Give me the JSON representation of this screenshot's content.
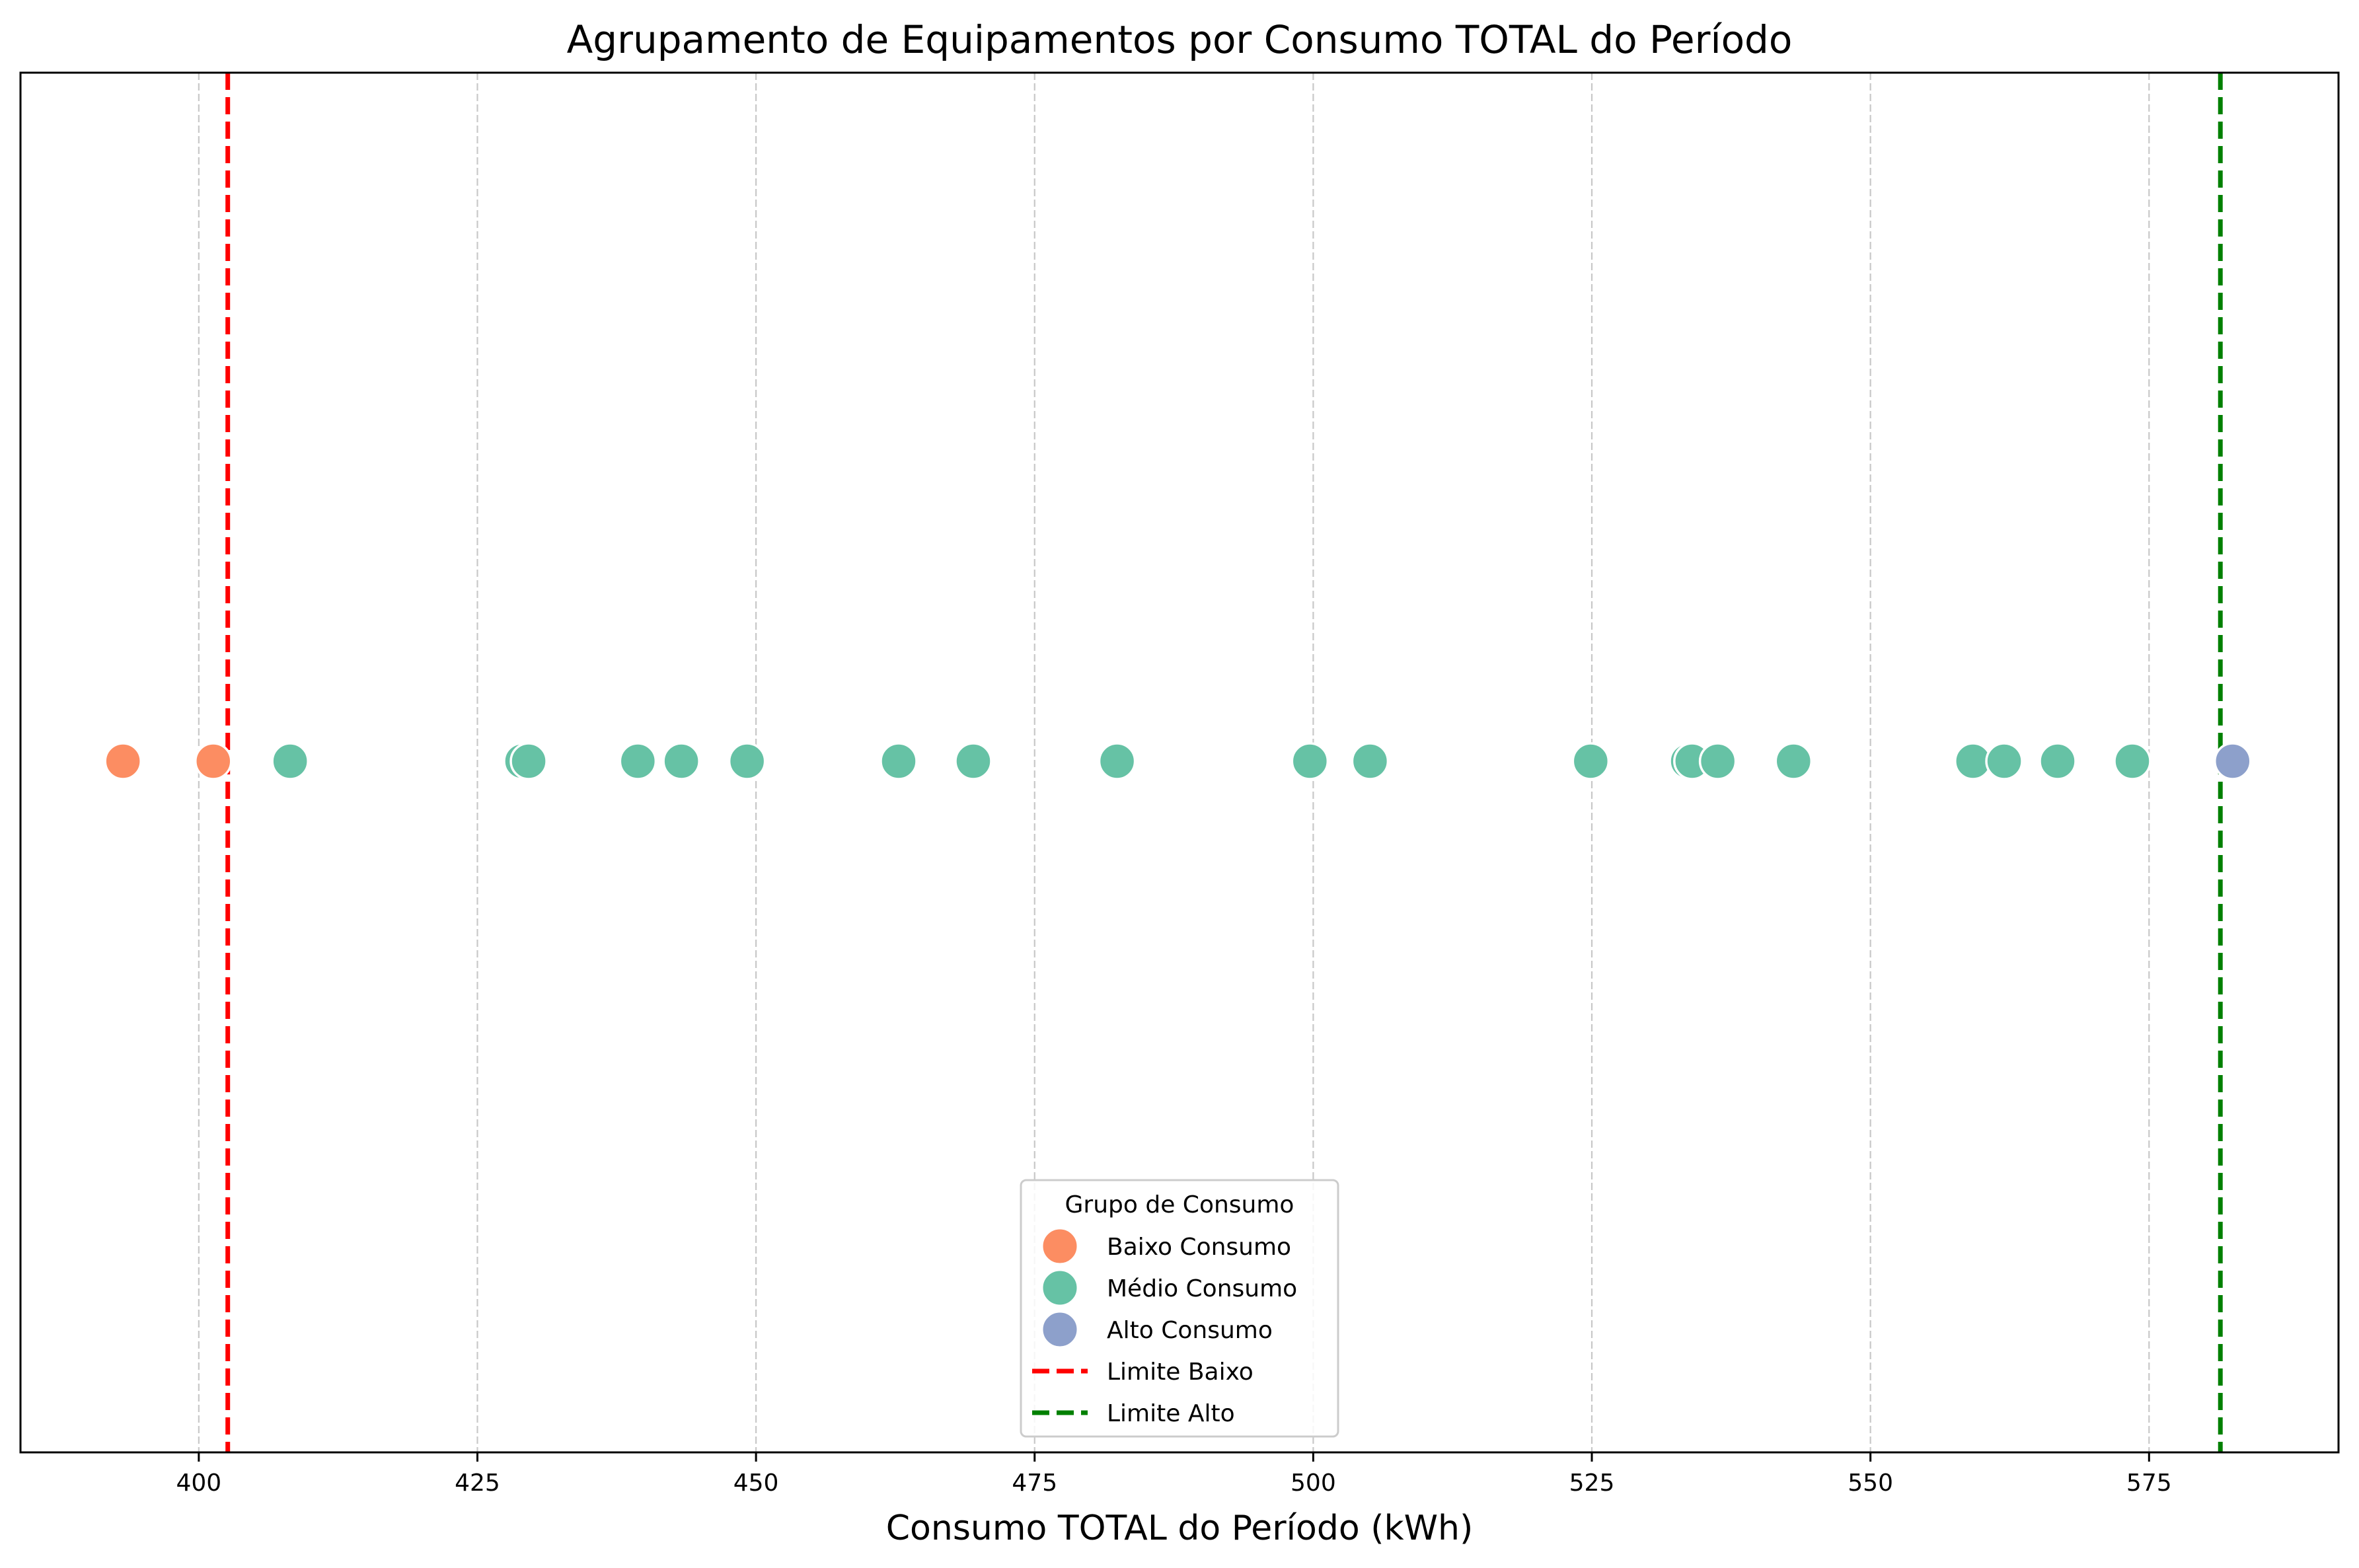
{
  "chart_data": {
    "type": "scatter",
    "title": "Agrupamento de Equipamentos por Consumo TOTAL do Período",
    "xlabel": "Consumo TOTAL do Período (kWh)",
    "ylabel": "",
    "xlim": [
      384,
      592
    ],
    "xticks": [
      "400",
      "425",
      "450",
      "475",
      "500",
      "525",
      "550",
      "575"
    ],
    "grid": "vertical dashed",
    "legend": {
      "title": "Grupo de Consumo",
      "placement": "bottom-center",
      "entries": [
        {
          "label": "Baixo Consumo",
          "kind": "marker",
          "color": "#fc8d62"
        },
        {
          "label": "Médio Consumo",
          "kind": "marker",
          "color": "#66c2a5"
        },
        {
          "label": "Alto Consumo",
          "kind": "marker",
          "color": "#8da0cb"
        },
        {
          "label": "Limite Baixo",
          "kind": "line",
          "color": "#ff0000"
        },
        {
          "label": "Limite Alto",
          "kind": "line",
          "color": "#008000"
        }
      ]
    },
    "thresholds": [
      {
        "name": "Limite Baixo",
        "value": 402.6,
        "color": "#ff0000"
      },
      {
        "name": "Limite Alto",
        "value": 581.4,
        "color": "#008000"
      }
    ],
    "series": [
      {
        "name": "Baixo Consumo",
        "color": "#fc8d62",
        "values": [
          393.2,
          401.3
        ]
      },
      {
        "name": "Médio Consumo",
        "color": "#66c2a5",
        "values": [
          408.2,
          429.0,
          429.6,
          439.4,
          443.3,
          449.2,
          462.8,
          469.5,
          482.4,
          499.7,
          505.1,
          524.9,
          533.6,
          534.0,
          536.3,
          543.1,
          559.2,
          562.0,
          566.8,
          573.5
        ]
      },
      {
        "name": "Alto Consumo",
        "color": "#8da0cb",
        "values": [
          582.5
        ]
      }
    ]
  }
}
